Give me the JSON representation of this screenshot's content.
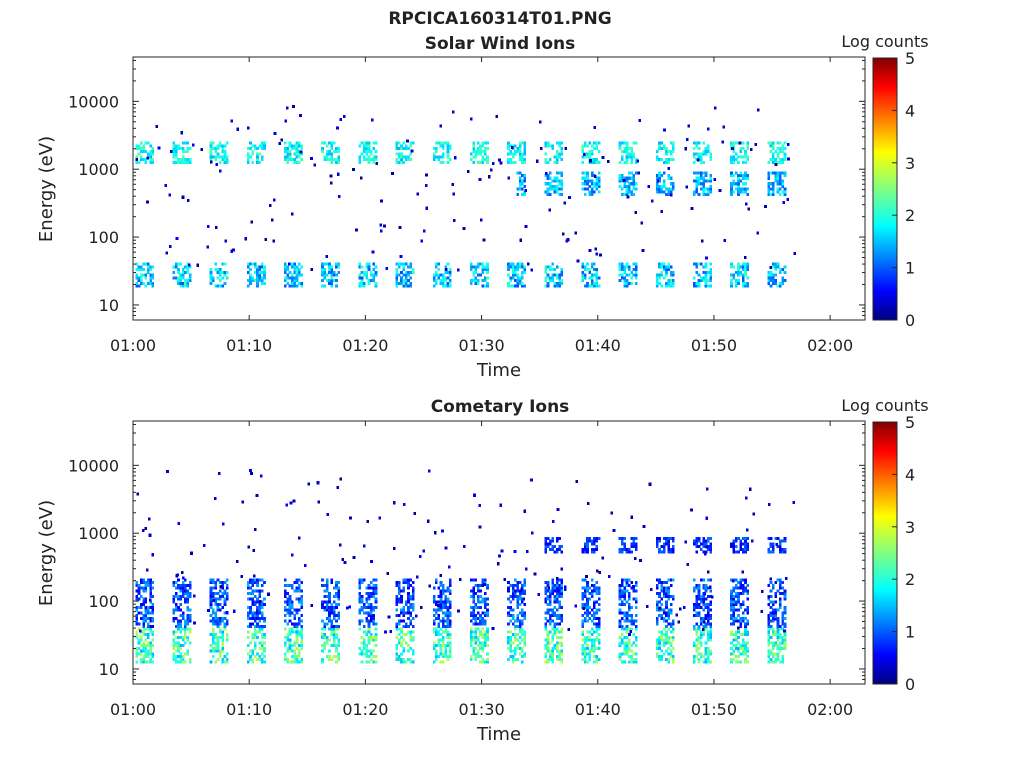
{
  "figure_title": "RPCICA160314T01.PNG",
  "chart_data": [
    {
      "type": "heatmap",
      "title": "Solar Wind Ions",
      "xlabel": "Time",
      "ylabel": "Energy (eV)",
      "yscale": "log",
      "xlim": [
        "01:00",
        "02:03"
      ],
      "ylim": [
        6,
        45000
      ],
      "xticks": [
        "01:00",
        "01:10",
        "01:20",
        "01:30",
        "01:40",
        "01:50",
        "02:00"
      ],
      "yticks": [
        "10",
        "100",
        "1000",
        "10000"
      ],
      "colorbar": {
        "label": "Log counts",
        "min": 0,
        "max": 5,
        "ticks": [
          "0",
          "1",
          "2",
          "3",
          "4",
          "5"
        ],
        "colormap": "jet"
      },
      "data_extent": [
        "01:00",
        "01:57"
      ],
      "sweep_start_times": [
        "01:00.2",
        "01:03.4",
        "01:06.6",
        "01:09.8",
        "01:13.0",
        "01:16.2",
        "01:19.4",
        "01:22.6",
        "01:25.8",
        "01:29.0",
        "01:32.2",
        "01:35.4",
        "01:38.6",
        "01:41.8",
        "01:45.0",
        "01:48.2",
        "01:51.4",
        "01:54.6"
      ],
      "features": [
        {
          "energy_eV": [
            18,
            40
          ],
          "log_counts": [
            1,
            2.2
          ],
          "description": "low-energy band"
        },
        {
          "energy_eV": [
            1200,
            2500
          ],
          "log_counts": [
            1.5,
            2.3
          ],
          "description": "solar wind proton band"
        },
        {
          "energy_eV": [
            400,
            900
          ],
          "log_counts": [
            1,
            2
          ],
          "after": "01:33",
          "description": "secondary band"
        }
      ]
    },
    {
      "type": "heatmap",
      "title": "Cometary Ions",
      "xlabel": "Time",
      "ylabel": "Energy (eV)",
      "yscale": "log",
      "xlim": [
        "01:00",
        "02:03"
      ],
      "ylim": [
        6,
        45000
      ],
      "xticks": [
        "01:00",
        "01:10",
        "01:20",
        "01:30",
        "01:40",
        "01:50",
        "02:00"
      ],
      "yticks": [
        "10",
        "100",
        "1000",
        "10000"
      ],
      "colorbar": {
        "label": "Log counts",
        "min": 0,
        "max": 5,
        "ticks": [
          "0",
          "1",
          "2",
          "3",
          "4",
          "5"
        ],
        "colormap": "jet"
      },
      "data_extent": [
        "01:00",
        "01:57"
      ],
      "sweep_start_times": [
        "01:00.2",
        "01:03.4",
        "01:06.6",
        "01:09.8",
        "01:13.0",
        "01:16.2",
        "01:19.4",
        "01:22.6",
        "01:25.8",
        "01:29.0",
        "01:32.2",
        "01:35.4",
        "01:38.6",
        "01:41.8",
        "01:45.0",
        "01:48.2",
        "01:51.4",
        "01:54.6"
      ],
      "features": [
        {
          "energy_eV": [
            12,
            40
          ],
          "log_counts": [
            1.5,
            2.8
          ],
          "description": "dense low-energy band"
        },
        {
          "energy_eV": [
            40,
            200
          ],
          "log_counts": [
            0.5,
            1.5
          ],
          "description": "upper spread"
        },
        {
          "energy_eV": [
            500,
            800
          ],
          "log_counts": [
            0.5,
            1.2
          ],
          "after": "01:35",
          "description": "sparse high-energy patches"
        }
      ]
    }
  ]
}
